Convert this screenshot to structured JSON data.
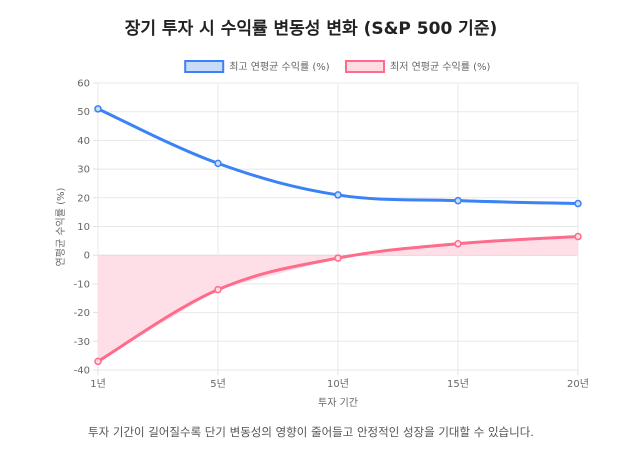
{
  "chart_data": {
    "type": "line",
    "title": "장기 투자 시 수익률 변동성 변화 (S&P 500 기준)",
    "caption": "투자 기간이 길어질수록 단기 변동성의 영향이 줄어들고 안정적인 성장을 기대할 수 있습니다.",
    "categories": [
      "1년",
      "5년",
      "10년",
      "15년",
      "20년"
    ],
    "xlabel": "투자 기간",
    "ylabel": "연평균 수익률 (%)",
    "ylim": [
      -40,
      60
    ],
    "yticks": [
      "60",
      "50",
      "40",
      "30",
      "20",
      "10",
      "0",
      "-10",
      "-20",
      "-30",
      "-40"
    ],
    "grid": true,
    "legend_position": "top",
    "series": [
      {
        "name": "최고 연평균 수익률 (%)",
        "values": [
          51,
          32,
          21,
          19,
          18
        ],
        "color": "#3b82f6",
        "fill": "#c9dcf7",
        "fill_area": false
      },
      {
        "name": "최저 연평균 수익률 (%)",
        "values": [
          -37,
          -12,
          -1,
          4,
          6.5
        ],
        "color": "#ff6b8a",
        "fill": "#ffdce4",
        "fill_area": true
      }
    ]
  }
}
